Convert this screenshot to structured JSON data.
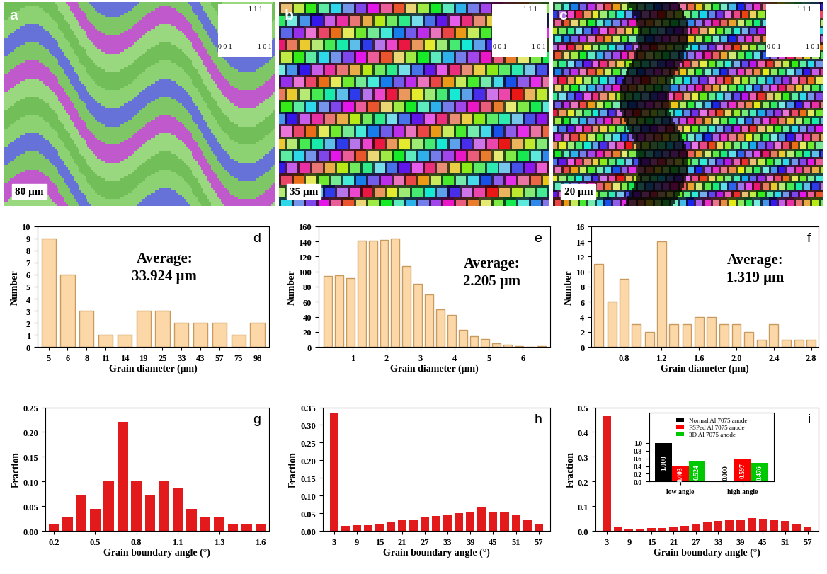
{
  "images": [
    {
      "panel_label": "a",
      "scale_bar": "80 μm",
      "key": [
        "1 1 1",
        "0 0 1",
        "1 0 1"
      ]
    },
    {
      "panel_label": "b",
      "scale_bar": "35 μm",
      "key": [
        "1 1 1",
        "0 0 1",
        "1 0 1"
      ]
    },
    {
      "panel_label": "c",
      "scale_bar": "20 μm",
      "key": [
        "1 1 1",
        "0 0 1",
        "1 0 1"
      ]
    }
  ],
  "chart_data": [
    {
      "type": "bar",
      "panel_label": "d",
      "annotation": "Average:\n33.924 μm",
      "x_label": "Grain diameter (μm)",
      "y_label": "Number",
      "color": "#fcd7a8",
      "categories": [
        "5",
        "6",
        "8",
        "11",
        "14",
        "19",
        "25",
        "33",
        "43",
        "57",
        "75",
        "98"
      ],
      "values": [
        9,
        6,
        3,
        1,
        1,
        3,
        3,
        2,
        2,
        2,
        1,
        2
      ],
      "ylim": [
        0,
        10
      ],
      "yticks": [
        0,
        1,
        2,
        3,
        4,
        5,
        6,
        7,
        8,
        9,
        10
      ]
    },
    {
      "type": "bar",
      "panel_label": "e",
      "annotation": "Average:\n2.205 μm",
      "x_label": "Grain diameter (μm)",
      "y_label": "Number",
      "color": "#fcd7a8",
      "x": [
        0.28,
        0.61,
        0.94,
        1.27,
        1.6,
        1.93,
        2.26,
        2.59,
        2.92,
        3.25,
        3.58,
        3.91,
        4.24,
        4.57,
        4.9,
        5.23,
        5.56,
        5.89,
        6.22,
        6.55
      ],
      "values": [
        94,
        95,
        91,
        141,
        141,
        142,
        144,
        107,
        84,
        70,
        50,
        42,
        23,
        14,
        11,
        5,
        3,
        1,
        0,
        1
      ],
      "xlim": [
        0,
        6.8
      ],
      "xticks": [
        1,
        2,
        3,
        4,
        5,
        6
      ],
      "ylim": [
        0,
        160
      ],
      "yticks": [
        0,
        20,
        40,
        60,
        80,
        100,
        120,
        140,
        160
      ]
    },
    {
      "type": "bar",
      "panel_label": "f",
      "annotation": "Average:\n1.319 μm",
      "x_label": "Grain diameter (μm)",
      "y_label": "Number",
      "color": "#fcd7a8",
      "x": [
        0.53,
        0.67,
        0.8,
        0.93,
        1.07,
        1.2,
        1.33,
        1.47,
        1.6,
        1.73,
        1.87,
        2.0,
        2.13,
        2.27,
        2.4,
        2.53,
        2.67,
        2.8
      ],
      "values": [
        11,
        6,
        9,
        3,
        2,
        14,
        3,
        3,
        4,
        4,
        3,
        3,
        2,
        1,
        3,
        1,
        1,
        1
      ],
      "xlim": [
        0.45,
        2.88
      ],
      "xticks": [
        0.8,
        1.2,
        1.6,
        {
          "value": 2.0,
          "label": "2.0"
        },
        2.4,
        2.8
      ],
      "ylim": [
        0,
        16
      ],
      "yticks": [
        0,
        2,
        4,
        6,
        8,
        10,
        12,
        14,
        16
      ]
    },
    {
      "type": "bar",
      "panel_label": "g",
      "x_label": "Grain boundary angle (°)",
      "y_label": "Fraction",
      "color": "#e31a1c",
      "categories": [
        "0.2",
        null,
        null,
        "0.5",
        null,
        null,
        "0.8",
        null,
        null,
        "1.1",
        null,
        null,
        "1.3",
        null,
        null,
        "1.6"
      ],
      "values": [
        0.015,
        0.029,
        0.073,
        0.044,
        0.102,
        0.22,
        0.102,
        0.073,
        0.102,
        0.088,
        0.044,
        0.029,
        0.029,
        0.015,
        0.015,
        0.015
      ],
      "ylim": [
        0,
        0.25
      ],
      "yticks": [
        {
          "value": 0,
          "label": "0.00"
        },
        {
          "value": 0.05,
          "label": "0.05"
        },
        {
          "value": 0.1,
          "label": "0.10"
        },
        {
          "value": 0.15,
          "label": "0.15"
        },
        {
          "value": 0.2,
          "label": "0.20"
        },
        {
          "value": 0.25,
          "label": "0.25"
        }
      ]
    },
    {
      "type": "bar",
      "panel_label": "h",
      "x_label": "Grain boundary angle (°)",
      "y_label": "Fraction",
      "color": "#e31a1c",
      "x": [
        3,
        6,
        9,
        12,
        15,
        18,
        21,
        24,
        27,
        30,
        33,
        36,
        39,
        42,
        45,
        48,
        51,
        54,
        57
      ],
      "values": [
        0.335,
        0.014,
        0.016,
        0.016,
        0.02,
        0.026,
        0.032,
        0.031,
        0.04,
        0.042,
        0.045,
        0.05,
        0.052,
        0.068,
        0.055,
        0.054,
        0.045,
        0.033,
        0.018
      ],
      "xlim": [
        0,
        60
      ],
      "xticks": [
        3,
        9,
        15,
        21,
        27,
        33,
        39,
        45,
        51,
        57
      ],
      "ylim": [
        0,
        0.35
      ],
      "yticks": [
        {
          "value": 0,
          "label": "0.00"
        },
        {
          "value": 0.05,
          "label": "0.05"
        },
        {
          "value": 0.1,
          "label": "0.10"
        },
        {
          "value": 0.15,
          "label": "0.15"
        },
        {
          "value": 0.2,
          "label": "0.20"
        },
        {
          "value": 0.25,
          "label": "0.25"
        },
        {
          "value": 0.3,
          "label": "0.30"
        },
        {
          "value": 0.35,
          "label": "0.35"
        }
      ]
    },
    {
      "type": "bar",
      "panel_label": "i",
      "x_label": "Grain boundary angle (°)",
      "y_label": "Fraction",
      "color": "#e31a1c",
      "x": [
        3,
        6,
        9,
        12,
        15,
        18,
        21,
        24,
        27,
        30,
        33,
        36,
        39,
        42,
        45,
        48,
        51,
        54,
        57
      ],
      "values": [
        0.465,
        0.018,
        0.01,
        0.009,
        0.011,
        0.012,
        0.015,
        0.02,
        0.026,
        0.035,
        0.04,
        0.044,
        0.045,
        0.052,
        0.048,
        0.044,
        0.04,
        0.03,
        0.017
      ],
      "xlim": [
        0,
        60
      ],
      "xticks": [
        3,
        9,
        15,
        21,
        27,
        33,
        39,
        45,
        51,
        57
      ],
      "ylim": [
        0,
        0.5
      ],
      "yticks": [
        {
          "value": 0,
          "label": "0.0"
        },
        0.1,
        0.2,
        0.3,
        0.4,
        0.5
      ],
      "inset": {
        "type": "bar",
        "categories": [
          "low angle",
          "high angle"
        ],
        "series": [
          {
            "name": "Normal Al 7075 anode",
            "color": "#000000",
            "values": [
              1.0,
              0.0
            ],
            "value_labels": [
              "1.000",
              "0.000"
            ]
          },
          {
            "name": "FSPed Al 7075 anode",
            "color": "#ff0000",
            "values": [
              0.403,
              0.597
            ],
            "value_labels": [
              "0.403",
              "0.597"
            ]
          },
          {
            "name": "3D Al 7075 anode",
            "color": "#00c800",
            "values": [
              0.524,
              0.476
            ],
            "value_labels": [
              "0.524",
              "0.476"
            ]
          }
        ],
        "ylim": [
          0,
          1.8
        ],
        "yticks": [
          {
            "value": 0,
            "label": "0.0"
          },
          0.2,
          0.4,
          0.6,
          0.8,
          {
            "value": 1,
            "label": "1.0"
          }
        ],
        "legend": "upper center",
        "data_labels": true
      }
    }
  ]
}
